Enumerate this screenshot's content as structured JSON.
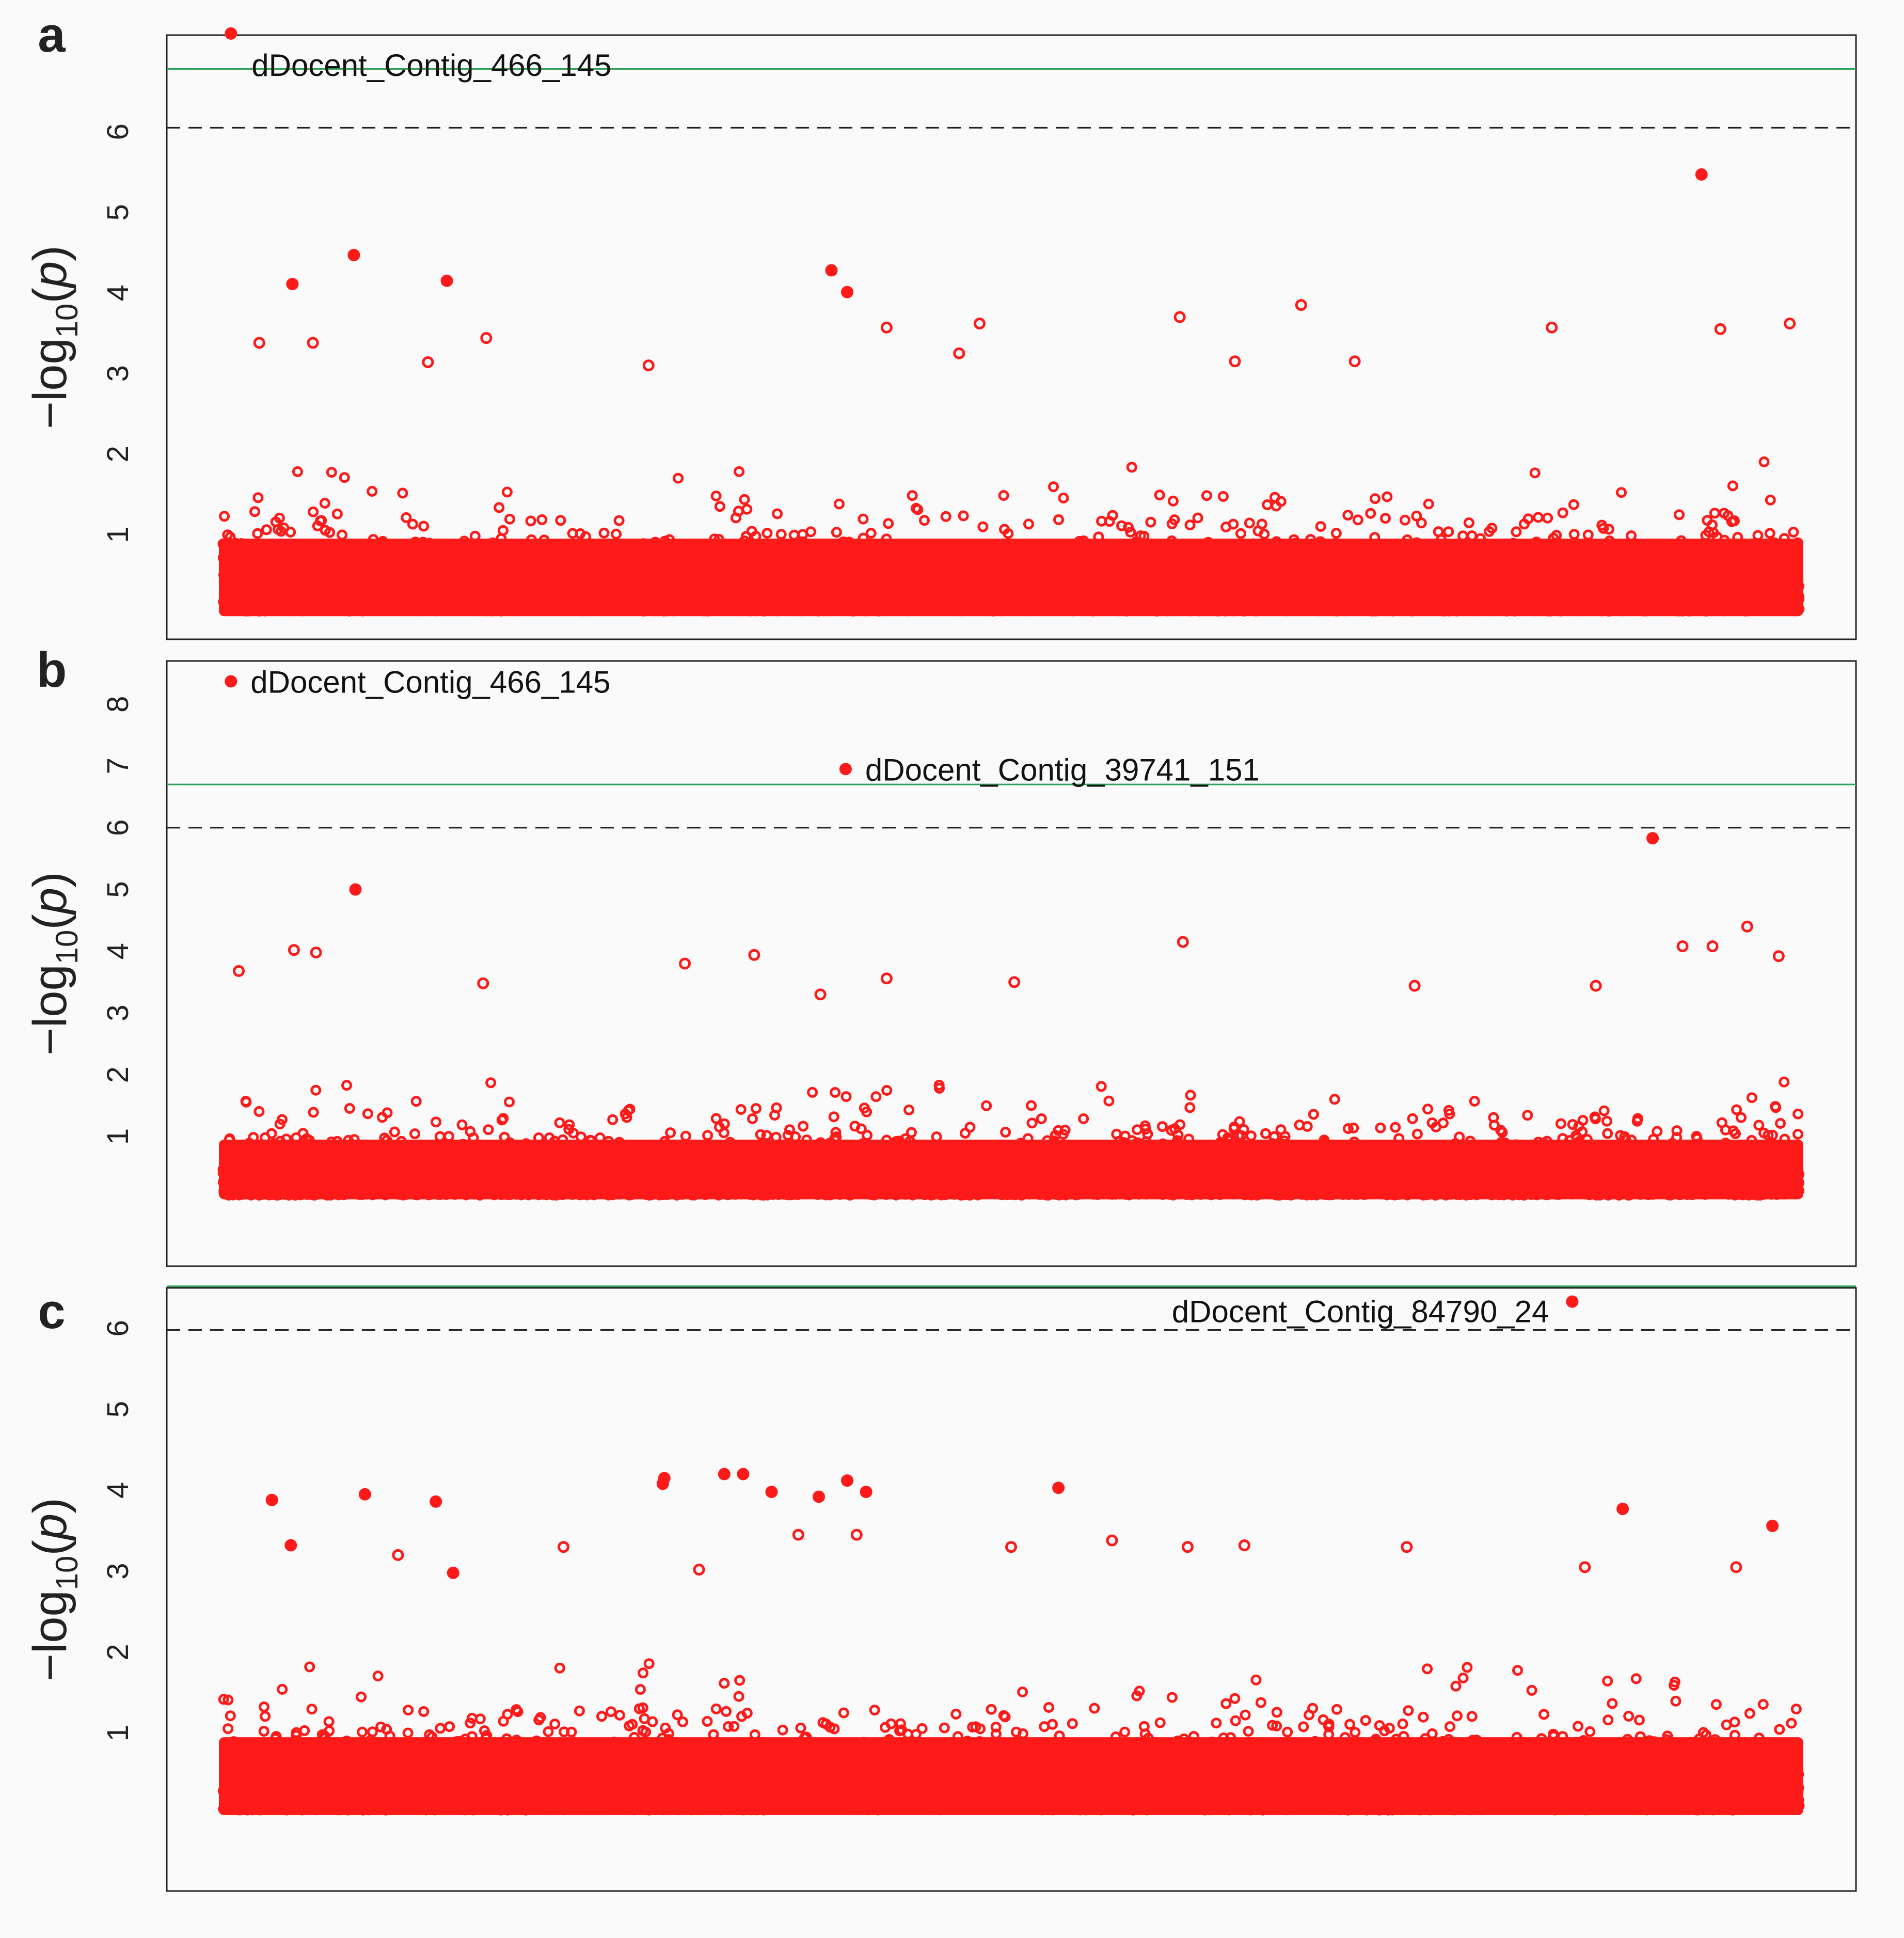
{
  "figure": {
    "y_label": "−log10(p)",
    "background": "#fafafa",
    "point_color": "#ff1a1a",
    "line_colors": {
      "bonferroni": "#2ca05a",
      "suggestive": "#222222"
    }
  },
  "chart_data": [
    {
      "panel_label": "a",
      "type": "scatter",
      "title": "",
      "xlabel": "",
      "ylabel": "−log10(p)",
      "xlim": [
        0,
        1000
      ],
      "ylim": [
        -0.3,
        7.2
      ],
      "yticks": [
        1,
        2,
        3,
        4,
        5,
        6
      ],
      "thresholds": {
        "bonferroni": 6.78,
        "suggestive": 6.05
      },
      "seed": 11,
      "highlighted_points": [
        {
          "x": 5,
          "y": 7.22,
          "label": "dDocent_Contig_466_145",
          "label_pos": "below"
        },
        {
          "x": 938,
          "y": 5.47
        },
        {
          "x": 83,
          "y": 4.47
        },
        {
          "x": 44,
          "y": 4.11
        },
        {
          "x": 142,
          "y": 4.15
        },
        {
          "x": 386,
          "y": 4.28
        },
        {
          "x": 396,
          "y": 4.01
        }
      ],
      "notable_points": [
        {
          "x": 23,
          "y": 3.38
        },
        {
          "x": 57,
          "y": 3.38
        },
        {
          "x": 130,
          "y": 3.14
        },
        {
          "x": 167,
          "y": 3.44
        },
        {
          "x": 421,
          "y": 3.57
        },
        {
          "x": 480,
          "y": 3.62
        },
        {
          "x": 607,
          "y": 3.7
        },
        {
          "x": 684,
          "y": 3.85
        },
        {
          "x": 843,
          "y": 3.57
        },
        {
          "x": 950,
          "y": 3.55
        },
        {
          "x": 994,
          "y": 3.62
        },
        {
          "x": 270,
          "y": 3.1
        },
        {
          "x": 467,
          "y": 3.25
        },
        {
          "x": 718,
          "y": 3.15
        },
        {
          "x": 642,
          "y": 3.15
        }
      ]
    },
    {
      "panel_label": "b",
      "type": "scatter",
      "title": "",
      "xlabel": "",
      "ylabel": "−log10(p)",
      "xlim": [
        0,
        1000
      ],
      "ylim": [
        -1.1,
        8.7
      ],
      "yticks": [
        1,
        2,
        3,
        4,
        5,
        6,
        7,
        8
      ],
      "thresholds": {
        "bonferroni": 6.7,
        "suggestive": 6.0
      },
      "seed": 23,
      "highlighted_points": [
        {
          "x": 5,
          "y": 8.37,
          "label": "dDocent_Contig_466_145",
          "label_pos": "right"
        },
        {
          "x": 395,
          "y": 6.95,
          "label": "dDocent_Contig_39741_151",
          "label_pos": "right"
        },
        {
          "x": 907,
          "y": 5.83
        },
        {
          "x": 84,
          "y": 5.0
        }
      ],
      "notable_points": [
        {
          "x": 45,
          "y": 4.02
        },
        {
          "x": 59,
          "y": 3.98
        },
        {
          "x": 609,
          "y": 4.15
        },
        {
          "x": 967,
          "y": 4.4
        },
        {
          "x": 945,
          "y": 4.08
        },
        {
          "x": 926,
          "y": 4.08
        },
        {
          "x": 987,
          "y": 3.92
        },
        {
          "x": 337,
          "y": 3.94
        },
        {
          "x": 293,
          "y": 3.8
        },
        {
          "x": 10,
          "y": 3.68
        },
        {
          "x": 165,
          "y": 3.48
        },
        {
          "x": 421,
          "y": 3.56
        },
        {
          "x": 502,
          "y": 3.5
        },
        {
          "x": 756,
          "y": 3.44
        },
        {
          "x": 871,
          "y": 3.44
        },
        {
          "x": 379,
          "y": 3.3
        }
      ]
    },
    {
      "panel_label": "c",
      "type": "scatter",
      "title": "",
      "xlabel": "",
      "ylabel": "−log10(p)",
      "xlim": [
        0,
        1000
      ],
      "ylim": [
        -0.95,
        6.5
      ],
      "yticks": [
        1,
        2,
        3,
        4,
        5,
        6
      ],
      "thresholds": {
        "bonferroni": 6.52,
        "suggestive": 5.98
      },
      "seed": 37,
      "highlighted_points": [
        {
          "x": 856,
          "y": 6.33,
          "label": "dDocent_Contig_84790_24",
          "label_pos": "left"
        },
        {
          "x": 318,
          "y": 4.2
        },
        {
          "x": 330,
          "y": 4.2
        },
        {
          "x": 280,
          "y": 4.15
        },
        {
          "x": 396,
          "y": 4.12
        },
        {
          "x": 279,
          "y": 4.08
        },
        {
          "x": 530,
          "y": 4.03
        },
        {
          "x": 348,
          "y": 3.98
        },
        {
          "x": 408,
          "y": 3.98
        },
        {
          "x": 378,
          "y": 3.92
        },
        {
          "x": 90,
          "y": 3.95
        },
        {
          "x": 31,
          "y": 3.88
        },
        {
          "x": 135,
          "y": 3.86
        },
        {
          "x": 888,
          "y": 3.77
        },
        {
          "x": 983,
          "y": 3.56
        },
        {
          "x": 43,
          "y": 3.32
        },
        {
          "x": 146,
          "y": 2.98
        }
      ],
      "notable_points": [
        {
          "x": 365,
          "y": 3.45
        },
        {
          "x": 402,
          "y": 3.45
        },
        {
          "x": 302,
          "y": 3.02
        },
        {
          "x": 564,
          "y": 3.38
        },
        {
          "x": 612,
          "y": 3.3
        },
        {
          "x": 648,
          "y": 3.32
        },
        {
          "x": 751,
          "y": 3.3
        },
        {
          "x": 216,
          "y": 3.3
        },
        {
          "x": 864,
          "y": 3.05
        },
        {
          "x": 960,
          "y": 3.05
        },
        {
          "x": 500,
          "y": 3.3
        },
        {
          "x": 111,
          "y": 3.2
        }
      ]
    }
  ]
}
